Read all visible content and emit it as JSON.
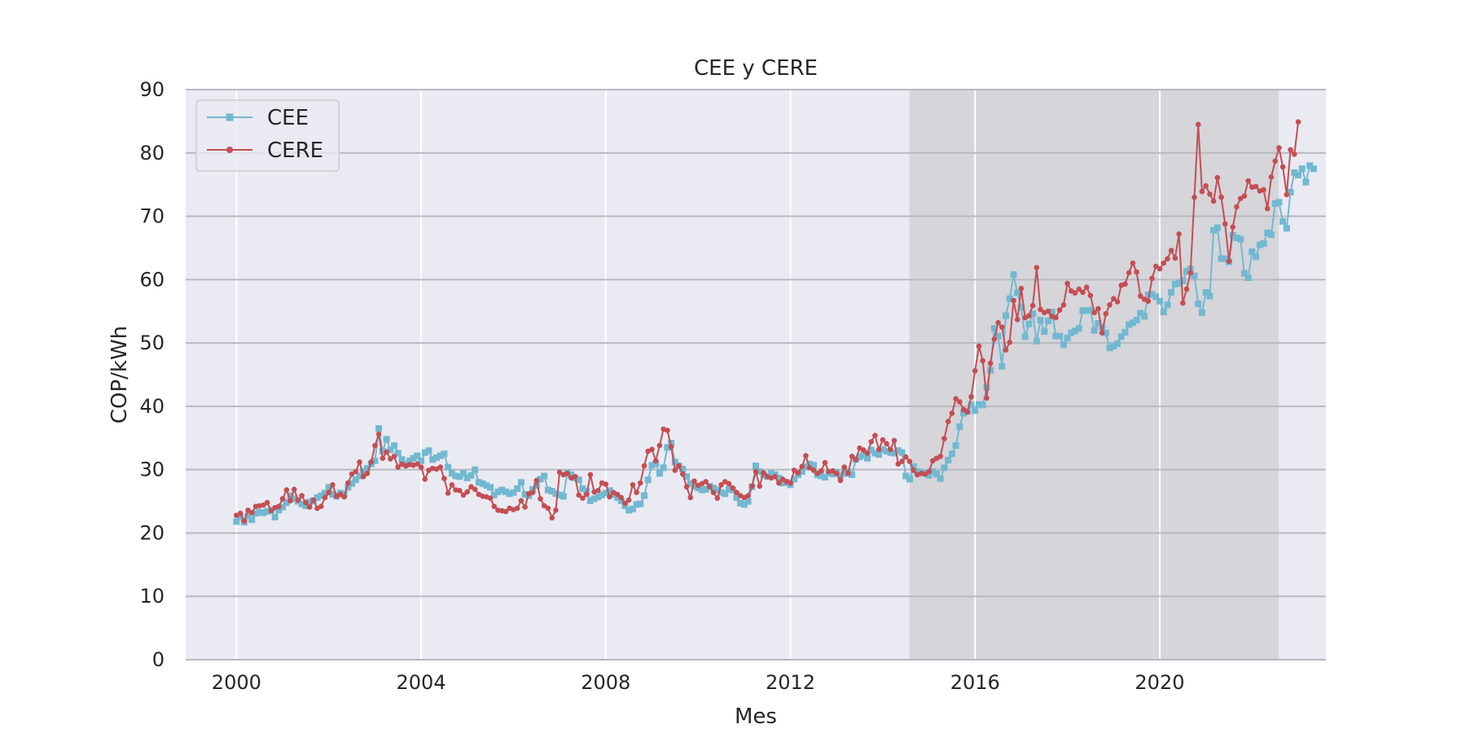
{
  "chart_data": {
    "type": "line",
    "title": "CEE y CERE",
    "xlabel": "Mes",
    "ylabel": "COP/kWh",
    "xlim": [
      1998.9,
      2023.6
    ],
    "ylim": [
      0,
      90
    ],
    "x_ticks": [
      2000,
      2004,
      2008,
      2012,
      2016,
      2020
    ],
    "y_ticks": [
      0,
      10,
      20,
      30,
      40,
      50,
      60,
      70,
      80,
      90
    ],
    "grid": true,
    "legend_position": "top-left",
    "shaded_region": {
      "x_start": 2014.58,
      "x_end": 2022.58,
      "color": "#bdbdbd"
    },
    "colors": {
      "CEE": "#72b8d1",
      "CERE": "#c44e52",
      "background": "#eaeaf2",
      "grid": "#ffffff"
    },
    "x_start": "2000-01",
    "x_step_months": 1,
    "series": [
      {
        "name": "CEE",
        "marker": "square",
        "values": [
          21.8,
          22.5,
          21.7,
          22.7,
          22.1,
          23.1,
          23.3,
          23.2,
          23.4,
          23.6,
          22.5,
          23.6,
          24.1,
          24.8,
          25.9,
          25.4,
          25.0,
          24.6,
          24.3,
          24.9,
          25.1,
          25.6,
          25.9,
          26.3,
          27.2,
          26.1,
          25.8,
          26.3,
          26.1,
          27.2,
          27.8,
          28.4,
          29.0,
          29.7,
          30.2,
          30.9,
          31.4,
          36.5,
          32.9,
          34.8,
          33.1,
          33.8,
          32.6,
          31.6,
          30.9,
          31.4,
          31.8,
          32.2,
          31.4,
          32.7,
          33.0,
          31.6,
          31.9,
          32.2,
          32.5,
          30.4,
          29.4,
          29.0,
          28.9,
          29.4,
          28.7,
          29.1,
          30.0,
          28.0,
          27.8,
          27.5,
          27.2,
          26.0,
          26.5,
          26.8,
          26.5,
          26.2,
          26.4,
          27.0,
          28.0,
          26.1,
          25.9,
          26.9,
          27.5,
          28.5,
          29.0,
          26.8,
          26.6,
          26.2,
          26.0,
          25.8,
          29.5,
          29.2,
          28.7,
          28.4,
          27.0,
          26.6,
          25.1,
          25.4,
          25.7,
          26.0,
          26.3,
          26.7,
          26.1,
          25.6,
          25.1,
          24.3,
          23.6,
          23.8,
          24.5,
          24.6,
          25.9,
          28.4,
          30.7,
          31.0,
          29.4,
          30.3,
          33.5,
          34.2,
          31.2,
          30.6,
          30.1,
          28.9,
          27.8,
          27.4,
          27.1,
          26.8,
          26.9,
          27.4,
          27.1,
          26.8,
          26.4,
          26.2,
          26.9,
          26.8,
          25.6,
          24.7,
          24.5,
          25.0,
          27.3,
          30.6,
          29.7,
          29.2,
          28.9,
          29.4,
          29.2,
          28.7,
          27.9,
          28.0,
          27.6,
          28.5,
          29.2,
          29.7,
          30.5,
          30.9,
          30.7,
          29.2,
          29.0,
          28.8,
          29.5,
          29.3,
          29.6,
          29.0,
          29.4,
          29.7,
          29.2,
          31.6,
          32.0,
          32.3,
          31.8,
          33.1,
          32.6,
          32.4,
          33.2,
          32.9,
          32.7,
          32.6,
          33.0,
          32.7,
          29.0,
          28.5,
          30.5,
          29.7,
          29.6,
          29.4,
          29.1,
          29.7,
          29.3,
          28.6,
          30.3,
          31.5,
          32.5,
          33.8,
          36.8,
          38.9,
          39.2,
          40.2,
          39.3,
          40.3,
          40.2,
          43.0,
          45.7,
          52.3,
          51.1,
          46.3,
          54.3,
          57.0,
          60.8,
          57.9,
          55.6,
          51.0,
          53.0,
          54.6,
          50.3,
          53.6,
          51.8,
          53.5,
          54.9,
          51.1,
          51.1,
          49.7,
          50.8,
          51.6,
          51.9,
          52.3,
          55.1,
          55.1,
          55.2,
          52.0,
          53.1,
          52.5,
          51.6,
          49.2,
          49.5,
          49.9,
          51.0,
          51.7,
          52.9,
          53.2,
          53.6,
          54.7,
          54.2,
          57.6,
          57.7,
          57.3,
          56.6,
          54.9,
          56.0,
          58.0,
          59.3,
          59.4,
          59.8,
          61.3,
          61.7,
          60.6,
          56.2,
          54.8,
          58.0,
          57.4,
          67.8,
          68.2,
          63.3,
          63.3,
          62.8,
          67.0,
          66.6,
          66.4,
          61.0,
          60.3,
          64.4,
          63.6,
          65.5,
          65.7,
          67.4,
          67.1,
          72.0,
          72.2,
          69.2,
          68.1,
          73.8,
          76.9,
          76.5,
          77.5,
          75.4,
          78.0,
          77.5
        ]
      },
      {
        "name": "CERE",
        "marker": "circle",
        "values": [
          22.8,
          23.1,
          21.9,
          23.6,
          23.2,
          24.2,
          24.3,
          24.4,
          24.8,
          23.5,
          24.0,
          24.2,
          25.4,
          26.8,
          25.1,
          26.9,
          25.2,
          25.9,
          24.8,
          24.1,
          25.2,
          23.9,
          24.2,
          25.6,
          26.4,
          27.6,
          25.8,
          26.1,
          25.7,
          27.9,
          29.3,
          29.7,
          31.2,
          28.9,
          29.4,
          31.2,
          33.8,
          35.6,
          31.8,
          32.8,
          31.7,
          32.1,
          30.4,
          30.9,
          30.6,
          30.8,
          30.7,
          30.9,
          30.4,
          28.5,
          29.9,
          30.2,
          30.1,
          30.4,
          28.6,
          26.3,
          27.6,
          26.8,
          26.7,
          26.0,
          26.5,
          27.3,
          26.9,
          26.1,
          25.8,
          25.7,
          25.5,
          24.2,
          23.6,
          23.5,
          23.4,
          23.9,
          23.7,
          23.9,
          25.1,
          24.1,
          26.2,
          26.4,
          28.3,
          25.4,
          24.3,
          23.9,
          22.4,
          23.6,
          29.6,
          29.2,
          29.4,
          28.7,
          28.9,
          26.0,
          25.5,
          26.1,
          29.2,
          26.5,
          26.7,
          27.9,
          27.7,
          25.7,
          26.4,
          26.1,
          25.6,
          24.7,
          25.2,
          27.6,
          26.4,
          27.9,
          30.6,
          32.9,
          33.2,
          31.4,
          33.8,
          36.4,
          36.2,
          33.6,
          29.9,
          30.6,
          29.3,
          27.3,
          25.6,
          28.2,
          27.5,
          27.8,
          28.1,
          27.3,
          26.4,
          25.5,
          27.6,
          28.1,
          27.8,
          27.1,
          26.4,
          25.9,
          25.6,
          25.9,
          27.4,
          29.7,
          27.4,
          29.5,
          28.9,
          28.7,
          28.9,
          27.9,
          28.5,
          28.1,
          27.9,
          29.9,
          29.5,
          30.5,
          32.2,
          30.3,
          29.9,
          29.4,
          29.8,
          31.1,
          29.7,
          29.8,
          29.4,
          28.3,
          30.4,
          29.4,
          32.1,
          31.6,
          33.4,
          33.1,
          32.6,
          34.4,
          35.4,
          33.2,
          34.7,
          34.1,
          33.2,
          34.6,
          30.9,
          31.3,
          32.0,
          31.3,
          29.9,
          29.2,
          29.4,
          29.3,
          29.7,
          31.4,
          31.8,
          32.1,
          34.9,
          37.6,
          38.9,
          41.2,
          40.7,
          39.5,
          39.1,
          41.5,
          45.6,
          49.5,
          47.2,
          41.3,
          46.8,
          50.6,
          53.2,
          52.5,
          48.9,
          50.1,
          56.7,
          53.7,
          58.6,
          54.0,
          54.3,
          55.9,
          61.9,
          55.3,
          54.8,
          55.0,
          54.2,
          54.0,
          55.2,
          56.0,
          59.4,
          58.2,
          57.9,
          58.5,
          58.0,
          58.8,
          57.5,
          54.8,
          55.4,
          51.6,
          54.6,
          56.0,
          57.0,
          56.5,
          59.1,
          59.3,
          61.1,
          62.6,
          61.2,
          57.4,
          56.9,
          56.6,
          60.2,
          62.1,
          61.7,
          62.6,
          63.3,
          64.6,
          63.4,
          67.2,
          56.3,
          58.5,
          61.1,
          73.0,
          84.5,
          73.9,
          74.8,
          73.5,
          72.4,
          76.1,
          73.0,
          68.8,
          62.9,
          68.3,
          71.5,
          72.8,
          73.2,
          75.6,
          74.6,
          74.7,
          74.0,
          74.2,
          71.2,
          76.2,
          78.7,
          80.8,
          77.8,
          73.4,
          80.5,
          79.8,
          84.9
        ]
      }
    ]
  }
}
